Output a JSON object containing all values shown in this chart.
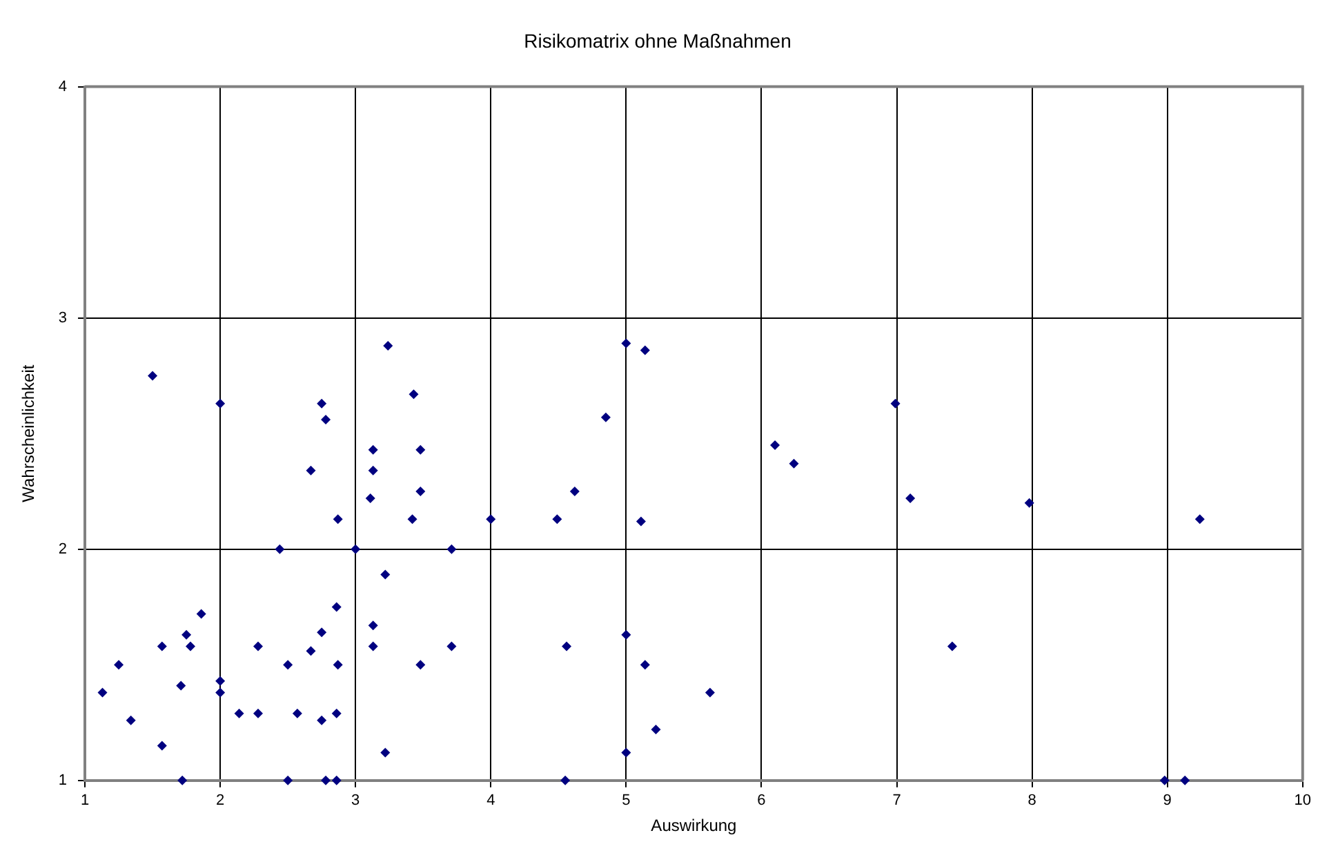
{
  "chart_data": {
    "type": "scatter",
    "title": "Risikomatrix ohne Maßnahmen",
    "xlabel": "Auswirkung",
    "ylabel": "Wahrscheinlichkeit",
    "xlim": [
      1,
      10
    ],
    "ylim": [
      1,
      4
    ],
    "xticks": [
      1,
      2,
      3,
      4,
      5,
      6,
      7,
      8,
      9,
      10
    ],
    "yticks": [
      1,
      2,
      3,
      4
    ],
    "grid": true,
    "marker": "diamond",
    "series": [
      {
        "color": "#000080",
        "x": [
          1.13,
          1.25,
          1.34,
          1.5,
          1.57,
          1.57,
          1.71,
          1.72,
          1.75,
          1.78,
          1.86,
          2.0,
          2.0,
          2.0,
          2.14,
          2.28,
          2.28,
          2.44,
          2.5,
          2.5,
          2.57,
          2.67,
          2.67,
          2.75,
          2.75,
          2.75,
          2.78,
          2.78,
          2.86,
          2.87,
          2.87,
          2.86,
          2.86,
          3.0,
          3.11,
          3.13,
          3.13,
          3.13,
          3.13,
          3.22,
          3.22,
          3.24,
          3.43,
          3.42,
          3.48,
          3.48,
          3.48,
          3.71,
          3.71,
          4.0,
          4.49,
          4.56,
          4.55,
          4.62,
          4.85,
          5.0,
          5.0,
          5.0,
          5.11,
          5.14,
          5.14,
          5.22,
          5.62,
          6.1,
          6.24,
          6.99,
          7.1,
          7.41,
          7.98,
          9.24,
          8.98,
          9.13
        ],
        "values": [
          1.38,
          1.5,
          1.26,
          2.75,
          1.58,
          1.15,
          1.41,
          1.0,
          1.63,
          1.58,
          1.72,
          2.63,
          1.43,
          1.38,
          1.29,
          1.58,
          1.29,
          2.0,
          1.5,
          1.0,
          1.29,
          2.34,
          1.56,
          2.63,
          1.64,
          1.26,
          2.56,
          1.0,
          1.75,
          2.13,
          1.5,
          1.29,
          1.0,
          2.0,
          2.22,
          2.43,
          2.34,
          1.67,
          1.58,
          1.89,
          1.12,
          2.88,
          2.67,
          2.13,
          2.43,
          2.25,
          1.5,
          2.0,
          1.58,
          2.13,
          2.13,
          1.58,
          1.0,
          2.25,
          2.57,
          2.89,
          1.63,
          1.12,
          2.12,
          2.86,
          1.5,
          1.22,
          1.38,
          2.45,
          2.37,
          2.63,
          2.22,
          1.58,
          2.2,
          2.13,
          1.0,
          1.0
        ]
      }
    ]
  }
}
